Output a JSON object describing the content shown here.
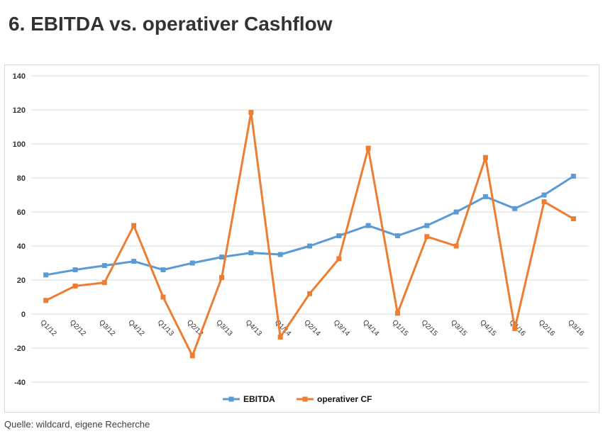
{
  "header": {
    "title": "6. EBITDA vs. operativer Cashflow"
  },
  "footer": {
    "source": "Quelle: wildcard, eigene Recherche"
  },
  "colors": {
    "ebitda": "#5B9BD5",
    "operativer_cf": "#ED7D31",
    "grid": "#d9d9d9"
  },
  "chart_data": {
    "type": "line",
    "title": "",
    "xlabel": "",
    "ylabel": "",
    "ylim": [
      -40,
      140
    ],
    "yticks": [
      -40,
      -20,
      0,
      20,
      40,
      60,
      80,
      100,
      120,
      140
    ],
    "grid": true,
    "legend_position": "bottom",
    "categories": [
      "Q1/12",
      "Q2/12",
      "Q3/12",
      "Q4/12",
      "Q1/13",
      "Q2/13",
      "Q3/13",
      "Q4/13",
      "Q1/14",
      "Q2/14",
      "Q3/14",
      "Q4/14",
      "Q1/15",
      "Q2/15",
      "Q3/15",
      "Q4/15",
      "Q1/16",
      "Q2/16",
      "Q3/16"
    ],
    "series": [
      {
        "name": "EBITDA",
        "color": "#5B9BD5",
        "values": [
          23,
          26,
          28.5,
          31,
          26,
          30,
          33.5,
          36,
          35,
          40,
          46,
          52,
          46,
          52,
          60,
          69,
          62,
          70,
          81
        ]
      },
      {
        "name": "operativer CF",
        "color": "#ED7D31",
        "values": [
          8,
          16.5,
          18.5,
          52,
          10,
          -24.5,
          21.5,
          118.5,
          -13.5,
          12,
          32.5,
          97.5,
          0.5,
          45.5,
          40,
          92,
          -8.5,
          66,
          56
        ]
      }
    ]
  }
}
